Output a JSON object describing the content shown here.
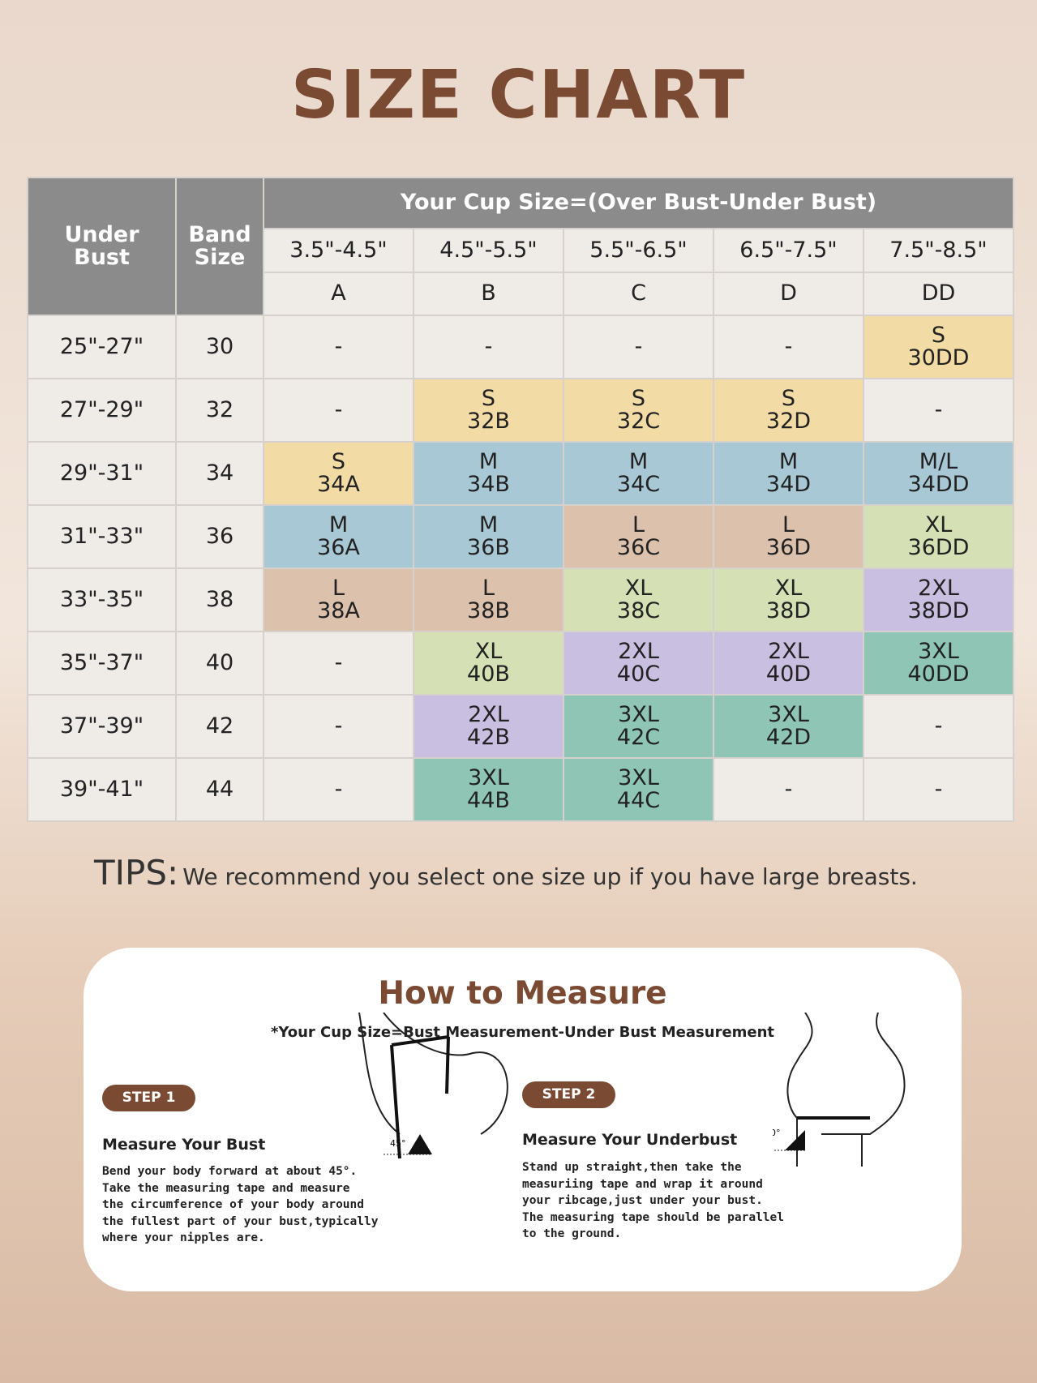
{
  "title": "SIZE CHART",
  "table": {
    "header": {
      "under_bust": "Under Bust",
      "band_size": "Band Size",
      "cup_size": "Your Cup Size=(Over Bust-Under Bust)",
      "ranges": [
        "3.5\"-4.5\"",
        "4.5\"-5.5\"",
        "5.5\"-6.5\"",
        "6.5\"-7.5\"",
        "7.5\"-8.5\""
      ],
      "cups": [
        "A",
        "B",
        "C",
        "D",
        "DD"
      ]
    },
    "rows": [
      {
        "under_bust": "25\"-27\"",
        "band": "30",
        "cells": [
          "-",
          "-",
          "-",
          "-",
          {
            "size": "S",
            "code": "30DD",
            "color": "#f2dba5"
          }
        ]
      },
      {
        "under_bust": "27\"-29\"",
        "band": "32",
        "cells": [
          "-",
          {
            "size": "S",
            "code": "32B",
            "color": "#f2dba5"
          },
          {
            "size": "S",
            "code": "32C",
            "color": "#f2dba5"
          },
          {
            "size": "S",
            "code": "32D",
            "color": "#f2dba5"
          },
          "-"
        ]
      },
      {
        "under_bust": "29\"-31\"",
        "band": "34",
        "cells": [
          {
            "size": "S",
            "code": "34A",
            "color": "#f2dba5"
          },
          {
            "size": "M",
            "code": "34B",
            "color": "#a9c8d5"
          },
          {
            "size": "M",
            "code": "34C",
            "color": "#a9c8d5"
          },
          {
            "size": "M",
            "code": "34D",
            "color": "#a9c8d5"
          },
          {
            "size": "M/L",
            "code": "34DD",
            "color": "#a9c8d5"
          }
        ]
      },
      {
        "under_bust": "31\"-33\"",
        "band": "36",
        "cells": [
          {
            "size": "M",
            "code": "36A",
            "color": "#a9c8d5"
          },
          {
            "size": "M",
            "code": "36B",
            "color": "#a9c8d5"
          },
          {
            "size": "L",
            "code": "36C",
            "color": "#dcc1ad"
          },
          {
            "size": "L",
            "code": "36D",
            "color": "#dcc1ad"
          },
          {
            "size": "XL",
            "code": "36DD",
            "color": "#d5e0b5"
          }
        ]
      },
      {
        "under_bust": "33\"-35\"",
        "band": "38",
        "cells": [
          {
            "size": "L",
            "code": "38A",
            "color": "#dcc1ad"
          },
          {
            "size": "L",
            "code": "38B",
            "color": "#dcc1ad"
          },
          {
            "size": "XL",
            "code": "38C",
            "color": "#d5e0b5"
          },
          {
            "size": "XL",
            "code": "38D",
            "color": "#d5e0b5"
          },
          {
            "size": "2XL",
            "code": "38DD",
            "color": "#c9bfe0"
          }
        ]
      },
      {
        "under_bust": "35\"-37\"",
        "band": "40",
        "cells": [
          "-",
          {
            "size": "XL",
            "code": "40B",
            "color": "#d5e0b5"
          },
          {
            "size": "2XL",
            "code": "40C",
            "color": "#c9bfe0"
          },
          {
            "size": "2XL",
            "code": "40D",
            "color": "#c9bfe0"
          },
          {
            "size": "3XL",
            "code": "40DD",
            "color": "#8ec5b5"
          }
        ]
      },
      {
        "under_bust": "37\"-39\"",
        "band": "42",
        "cells": [
          "-",
          {
            "size": "2XL",
            "code": "42B",
            "color": "#c9bfe0"
          },
          {
            "size": "3XL",
            "code": "42C",
            "color": "#8ec5b5"
          },
          {
            "size": "3XL",
            "code": "42D",
            "color": "#8ec5b5"
          },
          "-"
        ]
      },
      {
        "under_bust": "39\"-41\"",
        "band": "44",
        "cells": [
          "-",
          {
            "size": "3XL",
            "code": "44B",
            "color": "#8ec5b5"
          },
          {
            "size": "3XL",
            "code": "44C",
            "color": "#8ec5b5"
          },
          "-",
          "-"
        ]
      }
    ]
  },
  "tips": {
    "label": "TIPS:",
    "text": "We recommend you select one size up if you have large breasts."
  },
  "measure": {
    "title": "How to Measure",
    "subtitle": "*Your Cup Size=Bust Measurement-Under Bust Measurement",
    "steps": [
      {
        "badge": "STEP 1",
        "heading": "Measure Your Bust",
        "lines": [
          "Bend your body forward at about 45°.",
          "Take the measuring tape and measure",
          "the circumference of your body around",
          "the fullest part of your bust,typically",
          "where your nipples are."
        ],
        "angle": "45°"
      },
      {
        "badge": "STEP 2",
        "heading": "Measure Your Underbust",
        "lines": [
          "Stand up straight,then take the",
          "measuriing tape and wrap it around",
          "your ribcage,just under your bust.",
          "The measuring tape should be parallel",
          "to the ground."
        ],
        "angle": "90°"
      }
    ]
  }
}
